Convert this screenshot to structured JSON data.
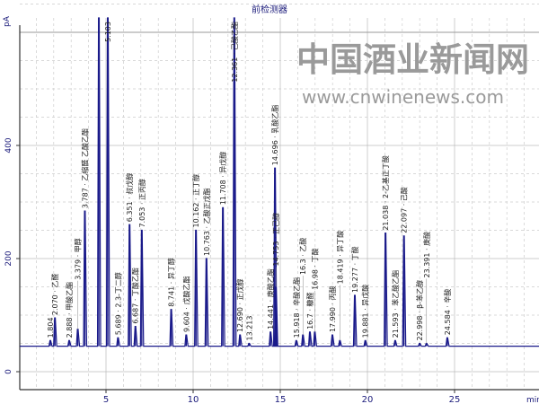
{
  "chart_data": {
    "type": "line",
    "title": "前检测器",
    "xlabel": "min",
    "ylabel": "pA",
    "xlim": [
      -1,
      29.8
    ],
    "ylim": [
      -32,
      657
    ],
    "xticks": [
      5,
      10,
      15,
      20,
      25
    ],
    "yticks": [
      0,
      200,
      400
    ],
    "grid": true,
    "baseline": 45,
    "line_color": "#1a1a8a",
    "peaks": [
      {
        "rt": 1.804,
        "height": 55,
        "label": "1.804"
      },
      {
        "rt": 2.07,
        "height": 95,
        "label": "2.070 · 乙醛"
      },
      {
        "rt": 2.888,
        "height": 55,
        "label": "2.888 · 甲酸乙酯"
      },
      {
        "rt": 3.379,
        "height": 75,
        "label": "3.379 · 甲醇"
      },
      {
        "rt": 3.787,
        "height": 284,
        "label": "3.787 · 乙缩醛 乙酸乙酯"
      },
      {
        "rt": 4.59,
        "height": 700,
        "label": ""
      },
      {
        "rt": 5.103,
        "height": 700,
        "label": "5.103"
      },
      {
        "rt": 5.689,
        "height": 60,
        "label": "5.689 · 2.3-丁二醇"
      },
      {
        "rt": 6.351,
        "height": 260,
        "label": "6.351 · 叔戊醇"
      },
      {
        "rt": 6.687,
        "height": 80,
        "label": "6.687 · 丁酸乙酯"
      },
      {
        "rt": 7.053,
        "height": 250,
        "label": "7.053 · 正丙醇"
      },
      {
        "rt": 8.741,
        "height": 110,
        "label": "8.741 · 异丁醇"
      },
      {
        "rt": 9.604,
        "height": 65,
        "label": "9.604 · 戊酸乙酯"
      },
      {
        "rt": 10.162,
        "height": 250,
        "label": "10.162 · 正丁醇"
      },
      {
        "rt": 10.763,
        "height": 200,
        "label": "10.763 · 乙酸正戊酯"
      },
      {
        "rt": 11.708,
        "height": 290,
        "label": "11.708 · 异戊醇"
      },
      {
        "rt": 12.361,
        "height": 700,
        "label": "12.361 · 己酸乙酯"
      },
      {
        "rt": 12.69,
        "height": 65,
        "label": "12.690 · 正戊醇"
      },
      {
        "rt": 13.213,
        "height": 50,
        "label": "13.213"
      },
      {
        "rt": 14.441,
        "height": 70,
        "label": "14.441 · 庚酸乙酯"
      },
      {
        "rt": 14.696,
        "height": 360,
        "label": "14.696 · 乳酸乙酯"
      },
      {
        "rt": 14.753,
        "height": 150,
        "label": "14.753 · 正己醇"
      },
      {
        "rt": 15.918,
        "height": 55,
        "label": "15.918 · 辛酸乙酯"
      },
      {
        "rt": 16.3,
        "height": 65,
        "label": "16.3 · 乙酸"
      },
      {
        "rt": 16.7,
        "height": 70,
        "label": "16.7 · 糠醛"
      },
      {
        "rt": 16.98,
        "height": 70,
        "label": "16.98 · 丁酸"
      },
      {
        "rt": 17.99,
        "height": 65,
        "label": "17.990 · 丙酸"
      },
      {
        "rt": 18.419,
        "height": 55,
        "label": "18.419 · 异丁酸"
      },
      {
        "rt": 19.277,
        "height": 135,
        "label": "19.277 · 丁酸"
      },
      {
        "rt": 19.881,
        "height": 55,
        "label": "19.881 · 异戊酸"
      },
      {
        "rt": 21.038,
        "height": 245,
        "label": "21.038 · 2-乙基正丁酸"
      },
      {
        "rt": 21.593,
        "height": 55,
        "label": "21.593 · 苯乙酸乙酯"
      },
      {
        "rt": 22.097,
        "height": 240,
        "label": "22.097 · 己酸"
      },
      {
        "rt": 22.998,
        "height": 50,
        "label": "22.998 · β-苯乙醇"
      },
      {
        "rt": 23.391,
        "height": 50,
        "label": "23.391 · 庚酸"
      },
      {
        "rt": 24.584,
        "height": 60,
        "label": "24.584 · 辛酸"
      }
    ]
  },
  "watermark": {
    "line1": "中国酒业新闻网",
    "line2": "www.cnwinenews.com"
  }
}
